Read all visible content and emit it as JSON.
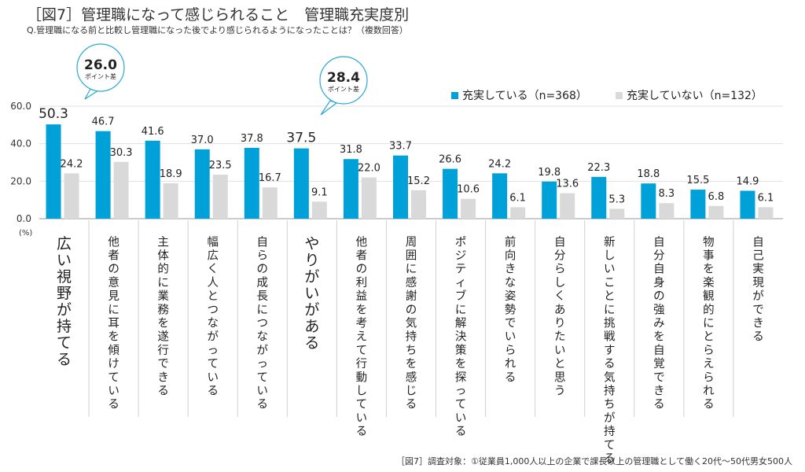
{
  "header": {
    "title": "［図7］管理職になって感じられること　管理職充実度別",
    "subtitle": "Q.管理職になる前と比較し管理職になった後でより感じられるようになったことは？（複数回答）"
  },
  "footnote": "［図7］調査対象：①従業員1,000人以上の企業で課長以上の管理職として働く20代～50代男女500人",
  "callouts": [
    {
      "value": "26.0",
      "label": "ポイント差",
      "category_index": 0
    },
    {
      "value": "28.4",
      "label": "ポイント差",
      "category_index": 5
    }
  ],
  "colors": {
    "series1": "#00a0d8",
    "series2": "#d9d9d9",
    "callout_border": "#2aa7d6",
    "grid": "#e0e0e0"
  },
  "chart_data": {
    "type": "bar",
    "yunit": "(%)",
    "ylim": [
      0,
      60
    ],
    "yticks": [
      "0.0",
      "20.0",
      "40.0",
      "60.0"
    ],
    "legend_position": "top-right",
    "categories": [
      "広い視野が持てる",
      "他者の意見に耳を傾けている",
      "主体的に業務を遂行できる",
      "幅広く人とつながっている",
      "自らの成長につながっている",
      "やりがいがある",
      "他者の利益を考えて行動している",
      "周囲に感謝の気持ちを感じる",
      "ポジティブに解決策を探っている",
      "前向きな姿勢でいられる",
      "自分らしくありたいと思う",
      "新しいことに挑戦する気持ちが持てる",
      "自分自身の強みを自覚できる",
      "物事を楽観的にとらえられる",
      "自己実現ができる"
    ],
    "series": [
      {
        "name": "充実している（n=368）",
        "values": [
          50.3,
          46.7,
          41.6,
          37.0,
          37.8,
          37.5,
          31.8,
          33.7,
          26.6,
          24.2,
          19.8,
          22.3,
          18.8,
          15.5,
          14.9
        ]
      },
      {
        "name": "充実していない（n=132）",
        "values": [
          24.2,
          30.3,
          18.9,
          23.5,
          16.7,
          9.1,
          22.0,
          15.2,
          10.6,
          6.1,
          13.6,
          5.3,
          8.3,
          6.8,
          6.1
        ]
      }
    ]
  }
}
